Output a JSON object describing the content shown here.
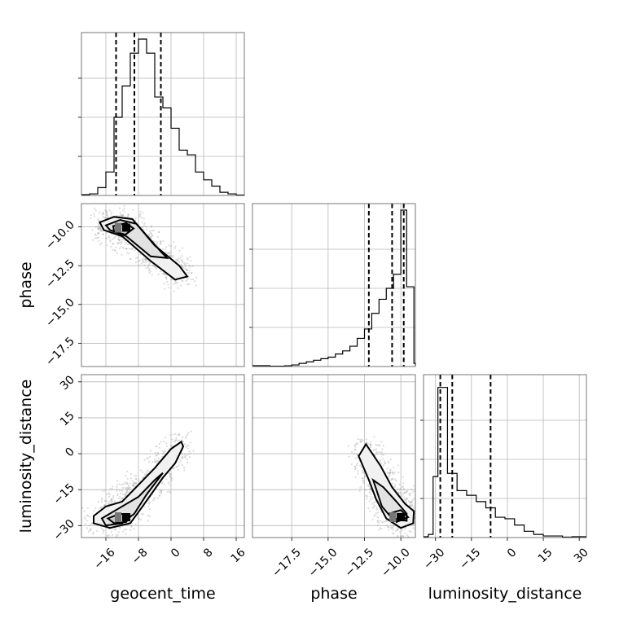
{
  "chart_data": {
    "type": "corner",
    "parameters": [
      "geocent_time",
      "phase",
      "luminosity_distance"
    ],
    "grid": true,
    "panels": {
      "hist_geocent_time": {
        "xlim": [
          -22,
          18
        ],
        "quantiles": [
          -13.5,
          -9,
          -2.5
        ],
        "bins": [
          [
            -20,
            -18,
            0.01
          ],
          [
            -18,
            -16,
            0.05
          ],
          [
            -16,
            -14,
            0.15
          ],
          [
            -14,
            -12,
            0.5
          ],
          [
            -12,
            -10,
            0.7
          ],
          [
            -10,
            -8,
            0.91
          ],
          [
            -8,
            -6,
            1.0
          ],
          [
            -6,
            -4,
            0.91
          ],
          [
            -4,
            -2,
            0.63
          ],
          [
            -2,
            0,
            0.56
          ],
          [
            0,
            2,
            0.43
          ],
          [
            2,
            4,
            0.29
          ],
          [
            4,
            6,
            0.26
          ],
          [
            6,
            8,
            0.15
          ],
          [
            8,
            10,
            0.1
          ],
          [
            10,
            12,
            0.06
          ],
          [
            12,
            14,
            0.02
          ],
          [
            14,
            16,
            0.01
          ],
          [
            16,
            18,
            0.003
          ]
        ]
      },
      "hist_phase": {
        "xlim": [
          -20.2,
          -9.0
        ],
        "quantiles": [
          -12.2,
          -10.6,
          -9.8
        ],
        "bins": [
          [
            -19,
            -18,
            0.002
          ],
          [
            -18,
            -17.5,
            0.005
          ],
          [
            -17.5,
            -17,
            0.01
          ],
          [
            -17,
            -16.5,
            0.02
          ],
          [
            -16.5,
            -16,
            0.03
          ],
          [
            -16,
            -15.5,
            0.04
          ],
          [
            -15.5,
            -15,
            0.05
          ],
          [
            -15,
            -14.5,
            0.06
          ],
          [
            -14.5,
            -14,
            0.08
          ],
          [
            -14,
            -13.5,
            0.1
          ],
          [
            -13.5,
            -13,
            0.13
          ],
          [
            -13,
            -12.5,
            0.18
          ],
          [
            -12.5,
            -12,
            0.24
          ],
          [
            -12,
            -11.5,
            0.34
          ],
          [
            -11.5,
            -11,
            0.43
          ],
          [
            -11,
            -10.5,
            0.5
          ],
          [
            -10.5,
            -10,
            0.59
          ],
          [
            -10,
            -9.6,
            1.0
          ],
          [
            -9.6,
            -9.1,
            0.51
          ],
          [
            -9.1,
            -9.0,
            0.02
          ]
        ]
      },
      "hist_luminosity_distance": {
        "xlim": [
          -35,
          33
        ],
        "quantiles": [
          -28,
          -23,
          -7
        ],
        "bins": [
          [
            -33,
            -31,
            0.02
          ],
          [
            -31,
            -29,
            0.39
          ],
          [
            -29,
            -25,
            0.96
          ],
          [
            -25,
            -21,
            0.41
          ],
          [
            -21,
            -17,
            0.3
          ],
          [
            -17,
            -13,
            0.27
          ],
          [
            -13,
            -9,
            0.23
          ],
          [
            -9,
            -5,
            0.19
          ],
          [
            -5,
            -1,
            0.13
          ],
          [
            -1,
            3,
            0.12
          ],
          [
            3,
            7,
            0.08
          ],
          [
            7,
            11,
            0.04
          ],
          [
            11,
            15,
            0.02
          ],
          [
            15,
            19,
            0.01
          ],
          [
            19,
            23,
            0.01
          ],
          [
            23,
            27,
            0.003
          ]
        ]
      },
      "phase_vs_geocent_time": {
        "xlim": [
          -22,
          18
        ],
        "ylim": [
          -19,
          -8.5
        ],
        "contours": [
          [
            [
              -17.5,
              -9.7
            ],
            [
              -14,
              -9.35
            ],
            [
              -9.5,
              -9.5
            ],
            [
              -4,
              -11.2
            ],
            [
              2,
              -12.5
            ],
            [
              4,
              -13.2
            ],
            [
              1,
              -13.4
            ],
            [
              -5,
              -12.2
            ],
            [
              -12,
              -10.6
            ],
            [
              -16.5,
              -10.2
            ],
            [
              -17.5,
              -9.7
            ]
          ],
          [
            [
              -16,
              -9.9
            ],
            [
              -12.5,
              -9.55
            ],
            [
              -8.5,
              -9.8
            ],
            [
              -2.5,
              -11.6
            ],
            [
              -1,
              -12.0
            ],
            [
              -5,
              -11.9
            ],
            [
              -11,
              -10.6
            ],
            [
              -15,
              -10.2
            ],
            [
              -16,
              -9.9
            ]
          ],
          [
            [
              -14.2,
              -9.95
            ],
            [
              -11,
              -9.75
            ],
            [
              -9.2,
              -10.1
            ],
            [
              -11.2,
              -10.5
            ],
            [
              -14,
              -10.3
            ],
            [
              -14.2,
              -9.95
            ]
          ]
        ],
        "peak": [
          -11,
          -10.05
        ]
      },
      "luminosity_distance_vs_geocent_time": {
        "xlim": [
          -22,
          18
        ],
        "ylim": [
          -35,
          33
        ],
        "contours": [
          [
            [
              -19,
              -26
            ],
            [
              -16,
              -22
            ],
            [
              -12,
              -20
            ],
            [
              -8,
              -13
            ],
            [
              -4,
              -6
            ],
            [
              0,
              2
            ],
            [
              2.5,
              5
            ],
            [
              3,
              3
            ],
            [
              1,
              -4
            ],
            [
              -2,
              -10
            ],
            [
              -7,
              -22
            ],
            [
              -10,
              -29
            ],
            [
              -15,
              -31
            ],
            [
              -19,
              -29
            ],
            [
              -19,
              -26
            ]
          ],
          [
            [
              -17,
              -27
            ],
            [
              -13,
              -23
            ],
            [
              -8,
              -18
            ],
            [
              -4,
              -11
            ],
            [
              -2,
              -8
            ],
            [
              -6,
              -17
            ],
            [
              -9,
              -25
            ],
            [
              -12,
              -29
            ],
            [
              -16,
              -30
            ],
            [
              -17,
              -27
            ]
          ],
          [
            [
              -15.5,
              -27
            ],
            [
              -12.5,
              -25
            ],
            [
              -10,
              -26
            ],
            [
              -11,
              -28.5
            ],
            [
              -14,
              -29
            ],
            [
              -15.5,
              -27
            ]
          ]
        ],
        "peak": [
          -11,
          -26.5
        ]
      },
      "luminosity_distance_vs_phase": {
        "xlim": [
          -20.2,
          -9.0
        ],
        "ylim": [
          -35,
          33
        ],
        "contours": [
          [
            [
              -12.9,
              -1
            ],
            [
              -12.4,
              4
            ],
            [
              -11.4,
              -5
            ],
            [
              -10.6,
              -14
            ],
            [
              -9.7,
              -21
            ],
            [
              -9.1,
              -24
            ],
            [
              -9.15,
              -29
            ],
            [
              -10,
              -31
            ],
            [
              -11,
              -27
            ],
            [
              -11.7,
              -19
            ],
            [
              -12.2,
              -11
            ],
            [
              -12.9,
              -1
            ]
          ],
          [
            [
              -11.9,
              -11
            ],
            [
              -11.2,
              -14
            ],
            [
              -10.3,
              -20
            ],
            [
              -9.6,
              -25
            ],
            [
              -9.6,
              -28
            ],
            [
              -10.6,
              -27
            ],
            [
              -11.3,
              -22
            ],
            [
              -11.9,
              -11
            ]
          ],
          [
            [
              -10.8,
              -25
            ],
            [
              -10.0,
              -23.5
            ],
            [
              -9.5,
              -26.5
            ],
            [
              -10.3,
              -28.5
            ],
            [
              -10.8,
              -25
            ]
          ]
        ],
        "peak": [
          -10,
          -26.5
        ]
      }
    },
    "ticks": {
      "geocent_time": [
        "−16",
        "−8",
        "0",
        "8",
        "16"
      ],
      "phase_x": [
        "−17.5",
        "−15.0",
        "−12.5",
        "−10.0"
      ],
      "phase_y": [
        "−10.0",
        "−12.5",
        "−15.0",
        "−17.5"
      ],
      "luminosity_distance_x": [
        "−30",
        "−15",
        "0",
        "15",
        "30"
      ],
      "luminosity_distance_y": [
        "30",
        "15",
        "0",
        "−15",
        "−30"
      ]
    },
    "tick_values": {
      "geocent_time": [
        -16,
        -8,
        0,
        8,
        16
      ],
      "phase_x": [
        -17.5,
        -15.0,
        -12.5,
        -10.0
      ],
      "phase_y": [
        -10.0,
        -12.5,
        -15.0,
        -17.5
      ],
      "luminosity_distance_x": [
        -30,
        -15,
        0,
        15,
        30
      ],
      "luminosity_distance_y": [
        30,
        15,
        0,
        -15,
        -30
      ]
    },
    "labels": {
      "x_bottom": [
        "geocent_time",
        "phase",
        "luminosity_distance"
      ],
      "y_left": [
        "phase",
        "luminosity_distance"
      ]
    }
  }
}
